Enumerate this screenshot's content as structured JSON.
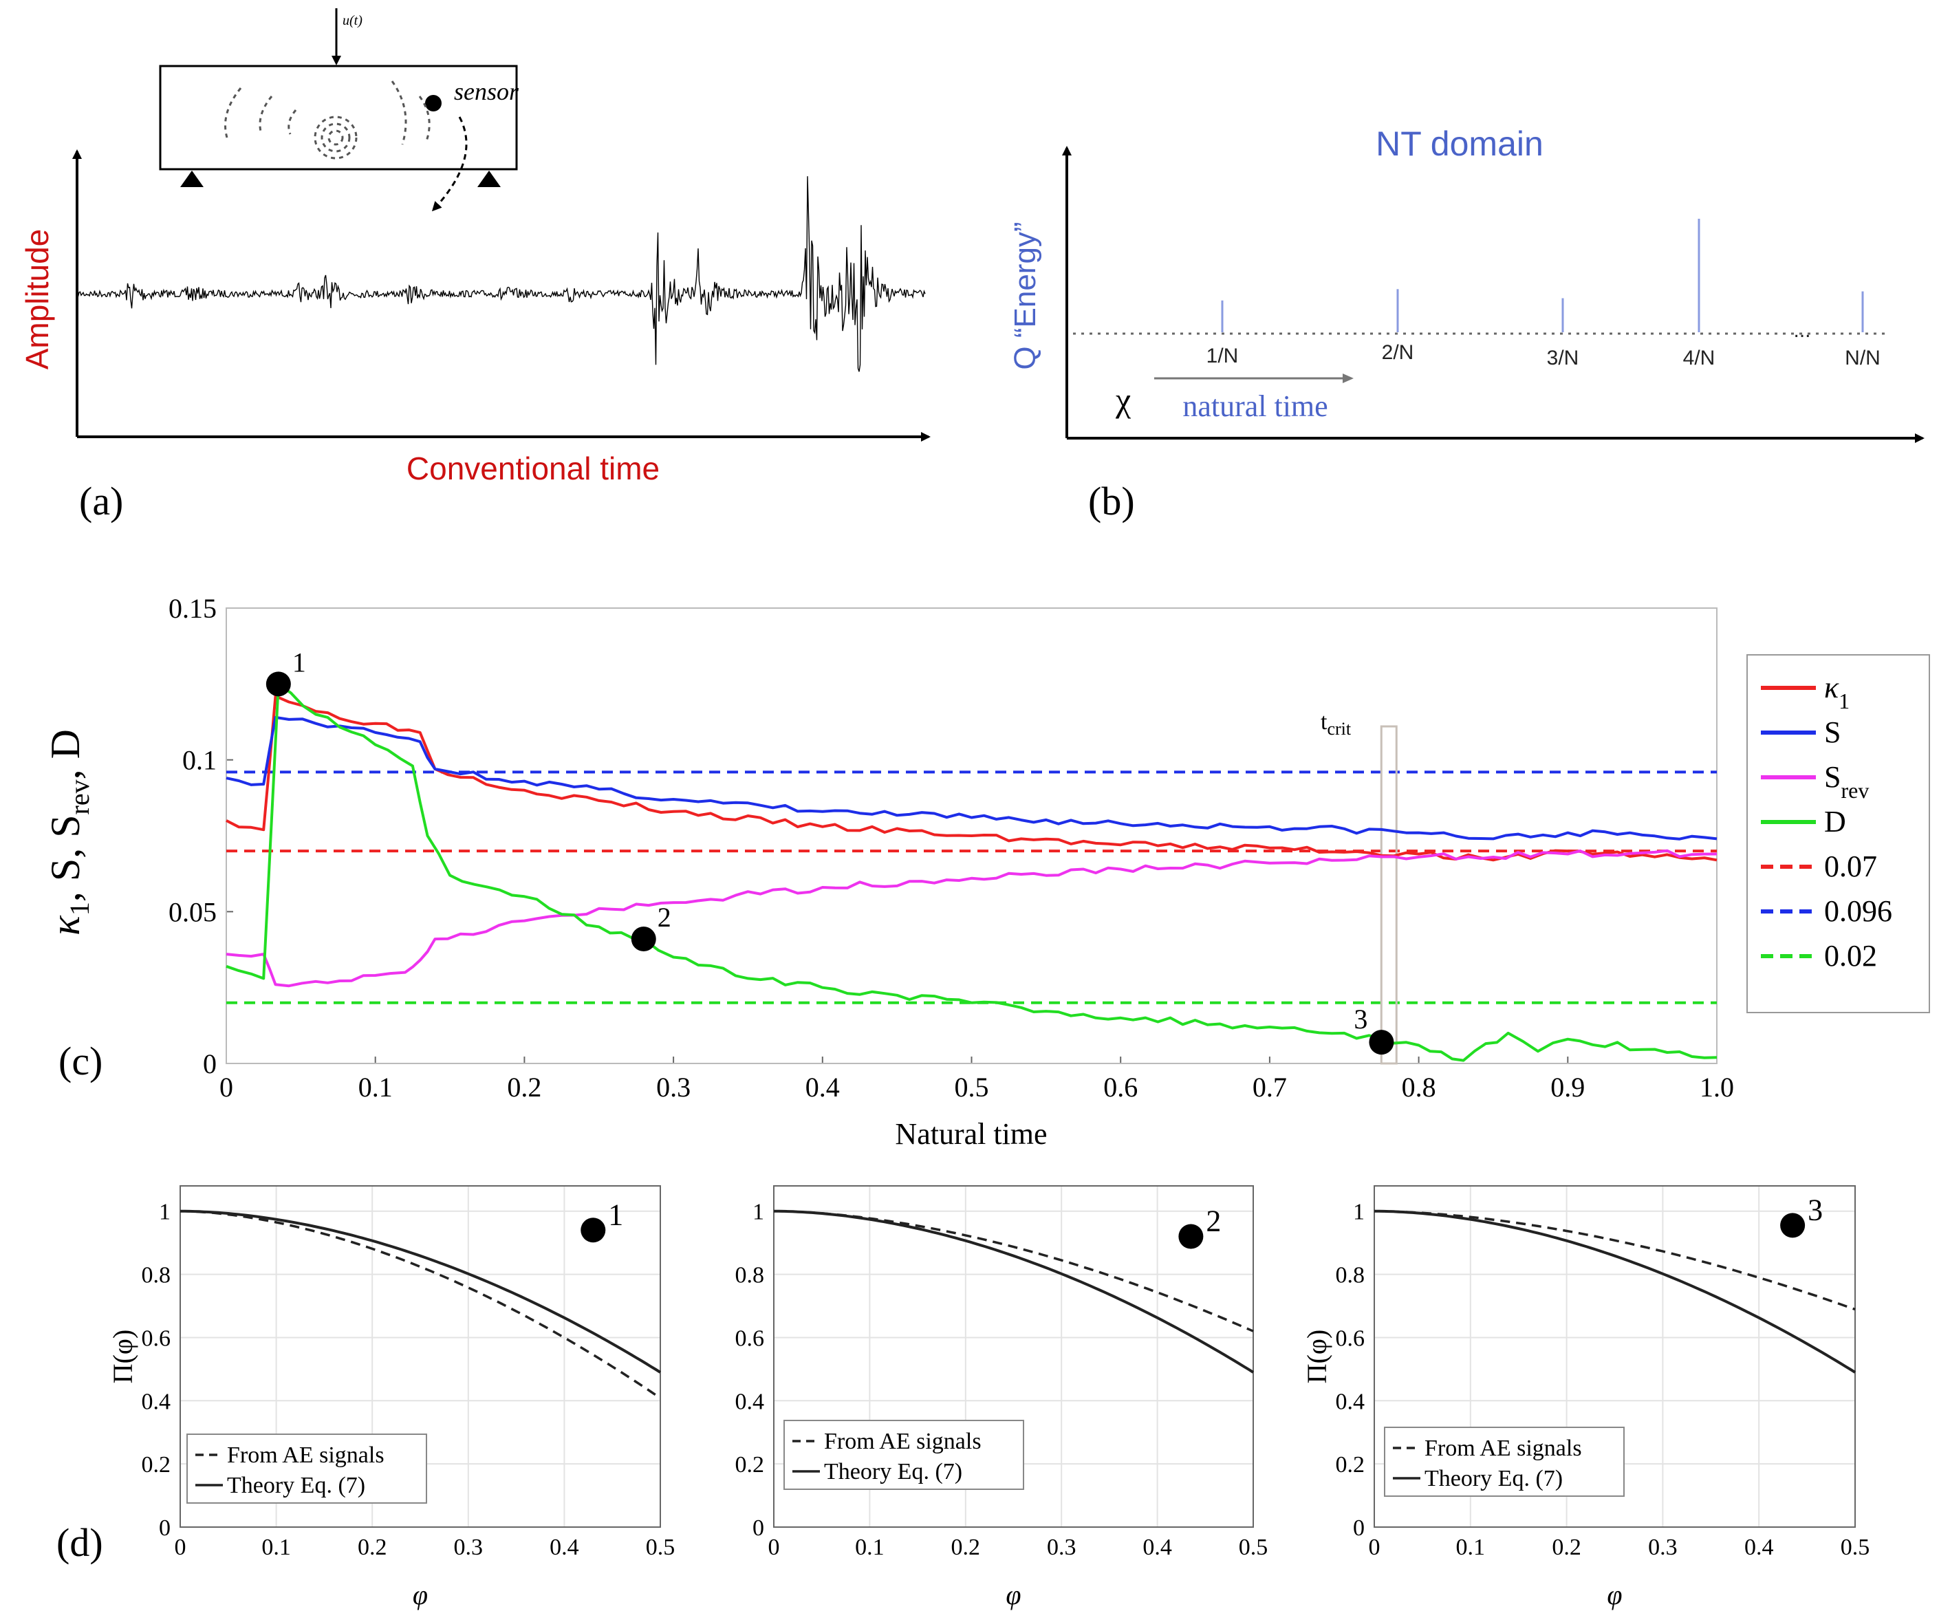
{
  "panel_a": {
    "panel_label": "(a)",
    "ylabel": "Amplitude",
    "xlabel": "Conventional time",
    "sensor_label": "sensor",
    "load_label": "u(t)",
    "signal_bursts": [
      {
        "t": 0.06,
        "amp": 0.12
      },
      {
        "t": 0.13,
        "amp": 0.06
      },
      {
        "t": 0.26,
        "amp": 0.05
      },
      {
        "t": 0.29,
        "amp": 0.14
      },
      {
        "t": 0.39,
        "amp": 0.06
      },
      {
        "t": 0.5,
        "amp": 0.05
      },
      {
        "t": 0.58,
        "amp": 0.06
      },
      {
        "t": 0.68,
        "amp": 0.55
      },
      {
        "t": 0.73,
        "amp": 0.35
      },
      {
        "t": 0.86,
        "amp": 1.0
      },
      {
        "t": 0.9,
        "amp": 0.45
      },
      {
        "t": 0.92,
        "amp": 0.55
      }
    ],
    "colors": {
      "label": "#cc1111"
    }
  },
  "panel_b": {
    "panel_label": "(b)",
    "title": "NT domain",
    "ylabel": "Q “Energy”",
    "chi_label": "χ",
    "arrow_label": "natural time",
    "ticks": [
      "1/N",
      "2/N",
      "3/N",
      "4/N",
      "...",
      "N/N"
    ],
    "stem_heights": [
      0.28,
      0.38,
      0.3,
      1.0,
      0.36
    ],
    "colors": {
      "label": "#4a63c8",
      "stem": "#8a9be0"
    }
  },
  "panel_c": {
    "panel_label": "(c)",
    "xlabel": "Natural time",
    "ylabel": "κ1, S, Srev, D",
    "xlim": [
      0,
      1.0
    ],
    "ylim": [
      0,
      0.15
    ],
    "xticks": [
      "0",
      "0.1",
      "0.2",
      "0.3",
      "0.4",
      "0.5",
      "0.6",
      "0.7",
      "0.8",
      "0.9",
      "1.0"
    ],
    "yticks": [
      "0",
      "0.05",
      "0.1",
      "0.15"
    ],
    "tcrit_label": "crit",
    "tcrit_x": 0.78,
    "markers": [
      {
        "label": "1",
        "x": 0.035,
        "y": 0.125
      },
      {
        "label": "2",
        "x": 0.28,
        "y": 0.041
      },
      {
        "label": "3",
        "x": 0.775,
        "y": 0.007
      }
    ],
    "legend": [
      "κ",
      "S",
      "S",
      "D",
      "0.07",
      "0.096",
      "0.02"
    ],
    "legend_subs": [
      "1",
      "",
      "rev",
      "",
      "",
      "",
      ""
    ],
    "chart_data": {
      "type": "line",
      "series": [
        {
          "name": "κ1",
          "color": "#ee2222",
          "x": [
            0,
            0.025,
            0.033,
            0.06,
            0.1,
            0.13,
            0.14,
            0.2,
            0.3,
            0.4,
            0.5,
            0.6,
            0.7,
            0.8,
            0.85,
            0.9,
            1.0
          ],
          "y": [
            0.08,
            0.077,
            0.121,
            0.116,
            0.112,
            0.109,
            0.097,
            0.09,
            0.083,
            0.078,
            0.075,
            0.072,
            0.071,
            0.069,
            0.067,
            0.07,
            0.067
          ]
        },
        {
          "name": "S",
          "color": "#1d2ee8",
          "x": [
            0,
            0.025,
            0.033,
            0.06,
            0.1,
            0.13,
            0.14,
            0.2,
            0.3,
            0.4,
            0.5,
            0.6,
            0.7,
            0.8,
            0.85,
            0.9,
            1.0
          ],
          "y": [
            0.094,
            0.092,
            0.114,
            0.112,
            0.109,
            0.106,
            0.097,
            0.093,
            0.087,
            0.083,
            0.081,
            0.079,
            0.078,
            0.076,
            0.074,
            0.076,
            0.074
          ]
        },
        {
          "name": "Srev",
          "color": "#ee33ee",
          "x": [
            0,
            0.025,
            0.033,
            0.06,
            0.1,
            0.12,
            0.13,
            0.14,
            0.2,
            0.3,
            0.4,
            0.5,
            0.6,
            0.7,
            0.8,
            0.9,
            1.0
          ],
          "y": [
            0.036,
            0.036,
            0.026,
            0.027,
            0.029,
            0.03,
            0.034,
            0.041,
            0.047,
            0.053,
            0.058,
            0.061,
            0.064,
            0.066,
            0.068,
            0.069,
            0.069
          ]
        },
        {
          "name": "D",
          "color": "#22dd22",
          "x": [
            0,
            0.025,
            0.035,
            0.06,
            0.1,
            0.125,
            0.135,
            0.15,
            0.2,
            0.25,
            0.28,
            0.3,
            0.35,
            0.4,
            0.5,
            0.6,
            0.7,
            0.75,
            0.8,
            0.83,
            0.86,
            0.88,
            0.9,
            1.0
          ],
          "y": [
            0.032,
            0.028,
            0.125,
            0.115,
            0.105,
            0.098,
            0.075,
            0.062,
            0.055,
            0.045,
            0.041,
            0.035,
            0.028,
            0.025,
            0.02,
            0.015,
            0.012,
            0.01,
            0.006,
            0.001,
            0.01,
            0.004,
            0.008,
            0.002
          ]
        }
      ],
      "hlines": [
        {
          "name": "0.07",
          "y": 0.07,
          "color": "#ee2222"
        },
        {
          "name": "0.096",
          "y": 0.096,
          "color": "#1d2ee8"
        },
        {
          "name": "0.02",
          "y": 0.02,
          "color": "#22dd22"
        }
      ]
    }
  },
  "panel_d": {
    "panel_label": "(d)",
    "xlabel": "φ",
    "ylabel": "Π(φ)",
    "xticks": [
      "0",
      "0.1",
      "0.2",
      "0.3",
      "0.4",
      "0.5"
    ],
    "yticks": [
      "0",
      "0.2",
      "0.4",
      "0.6",
      "0.8",
      "1"
    ],
    "legend": [
      "From AE signals",
      "Theory Eq. (7)"
    ],
    "chart_data": [
      {
        "type": "line",
        "marker": "1",
        "theory_end": 0.49,
        "ae_kappa": 0.137,
        "xlim": [
          0,
          0.5
        ],
        "ylim": [
          0,
          1.08
        ]
      },
      {
        "type": "line",
        "marker": "2",
        "theory_end": 0.49,
        "ae_kappa": 0.088,
        "xlim": [
          0,
          0.5
        ],
        "ylim": [
          0,
          1.08
        ]
      },
      {
        "type": "line",
        "marker": "3",
        "theory_end": 0.49,
        "ae_kappa": 0.072,
        "xlim": [
          0,
          0.5
        ],
        "ylim": [
          0,
          1.08
        ]
      }
    ]
  }
}
